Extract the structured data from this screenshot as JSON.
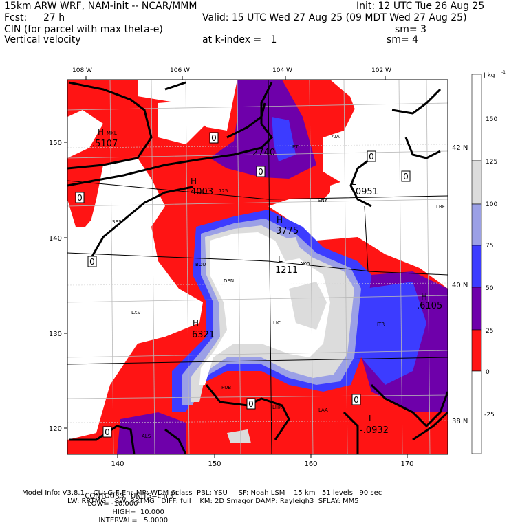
{
  "header": {
    "model_line": "15km ARW WRF, NAM-init -- NCAR/MMM",
    "init": "Init: 12 UTC Tue 26 Aug 25",
    "fcst_label": "Fcst:",
    "fcst_value": "27 h",
    "valid": "Valid: 15 UTC Wed 27 Aug 25 (09 MDT Wed 27 Aug 25)",
    "field1": "CIN (for parcel with max theta-e)",
    "field1_sm": "sm= 3",
    "field2": "Vertical velocity",
    "field2_level": "at k-index =   1",
    "field2_sm": "sm= 4"
  },
  "map": {
    "top_lon_labels": [
      "108 W",
      "106 W",
      "104 W",
      "102 W"
    ],
    "left_lat_ticks": [
      "150",
      "140",
      "130",
      "120"
    ],
    "bottom_ticks": [
      "140",
      "150",
      "160",
      "170"
    ],
    "right_lat_labels": [
      "42 N",
      "40 N",
      "38 N"
    ],
    "cities": [
      "AIA",
      "SBS",
      "SNY",
      "LBF",
      "BOU",
      "DEN",
      "AKO",
      "LXV",
      "ITR",
      "LIC",
      "PUB",
      "LHX",
      "LAA",
      "ALS"
    ],
    "highs": [
      {
        "label": "H",
        "value": ".5107"
      },
      {
        "label": "H",
        "value": "4003"
      },
      {
        "label": "H",
        "value": "3775"
      },
      {
        "label": "H",
        "value": ".6105"
      },
      {
        "label": "H",
        "value": "6321"
      }
    ],
    "lows": [
      {
        "label": "L",
        "value": "-.0951"
      },
      {
        "label": "L",
        "value": "1211"
      },
      {
        "label": "L",
        "value": "-.0932"
      }
    ],
    "misc_labels": {
      "h2740": "2740",
      "h_mxl": "MXL",
      "h_725": "725",
      "pt": "PT"
    },
    "zero_labels": [
      "0",
      "0",
      "0",
      "0",
      "0",
      "0",
      "0",
      "0",
      "0"
    ]
  },
  "colorbar": {
    "unit": "J kg",
    "unit_exp": "-1",
    "tick_labels": [
      "150",
      "125",
      "100",
      "75",
      "50",
      "25",
      "0",
      "-25"
    ],
    "colors": {
      "white": "#ffffff",
      "lightgray": "#dcdcdc",
      "lightblue": "#9ba0e6",
      "blue": "#3c3cff",
      "purple": "#6e00aa",
      "red": "#ff1414"
    }
  },
  "footer": {
    "contours": "CONTOURS:  UNITS=cm s",
    "contours_exp": "-1",
    "low": "LOW= -10.000",
    "high": "HIGH=  10.000",
    "interval": "INTERVAL=   5.0000",
    "model_info": "Model Info: V3.8.1    CU: G-F Ens MP: WDM 6class  PBL: YSU     SF: Noah LSM    15 km   51 levels   90 sec",
    "model_info2": "LW: RRTMG    SW: RRTMG   DIFF: full    KM: 2D Smagor DAMP: Rayleigh3  SFLAY: MM5"
  }
}
